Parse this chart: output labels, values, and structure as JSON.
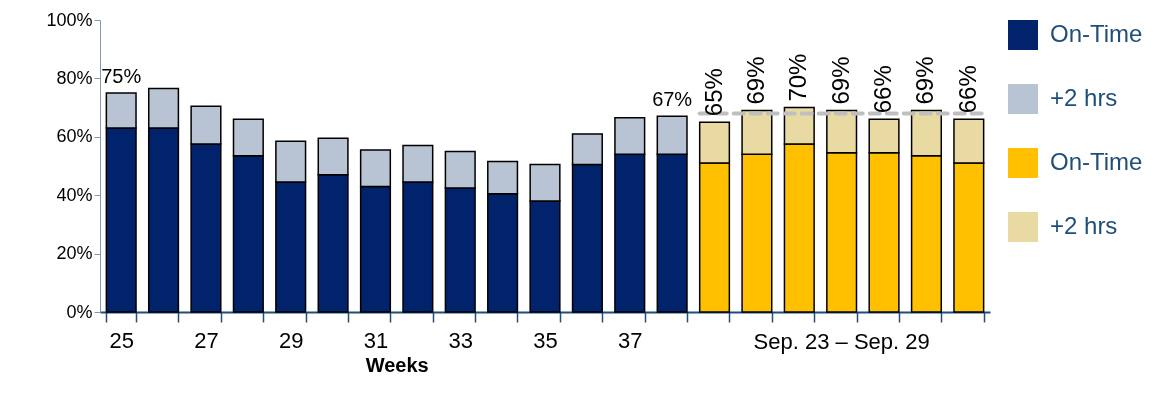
{
  "chart_data": {
    "type": "bar",
    "stacked": true,
    "categories": [
      "25",
      null,
      "27",
      null,
      "29",
      null,
      "31",
      null,
      "33",
      null,
      "35",
      null,
      "37",
      null,
      null,
      null,
      null,
      null,
      null,
      null,
      null
    ],
    "series": [
      {
        "name": "On-Time",
        "color": "#00236b",
        "values": [
          63,
          63,
          57.5,
          53.5,
          44.5,
          47,
          43,
          44.5,
          42.5,
          40.5,
          38,
          50.5,
          54,
          54,
          null,
          null,
          null,
          null,
          null,
          null,
          null
        ]
      },
      {
        "name": "+2 hrs",
        "color": "#b8c3d3",
        "values": [
          12,
          13.5,
          13,
          12.5,
          14,
          12.5,
          12.5,
          12.5,
          12.5,
          11,
          12.5,
          10.5,
          12.5,
          13,
          null,
          null,
          null,
          null,
          null,
          null,
          null
        ]
      },
      {
        "name": "On-Time",
        "color": "#ffc000",
        "values": [
          null,
          null,
          null,
          null,
          null,
          null,
          null,
          null,
          null,
          null,
          null,
          null,
          null,
          null,
          51,
          54,
          57.5,
          54.5,
          54.5,
          53.5,
          51
        ]
      },
      {
        "name": "+2 hrs",
        "color": "#e9d9a3",
        "values": [
          null,
          null,
          null,
          null,
          null,
          null,
          null,
          null,
          null,
          null,
          null,
          null,
          null,
          null,
          14,
          15,
          12.5,
          14.5,
          11.5,
          15.5,
          15
        ]
      }
    ],
    "totals": [
      "75%",
      null,
      null,
      null,
      null,
      null,
      null,
      null,
      null,
      null,
      null,
      null,
      null,
      "67%",
      "65%",
      "69%",
      "70%",
      "69%",
      "66%",
      "69%",
      "66%"
    ],
    "xlabel": "Weeks",
    "annotations": [
      "Sep. 23 – Sep. 29"
    ],
    "ylim": [
      0,
      100
    ],
    "yticks": [
      {
        "value": 0,
        "label": "0%"
      },
      {
        "value": 20,
        "label": "20%"
      },
      {
        "value": 40,
        "label": "40%"
      },
      {
        "value": 60,
        "label": "60%"
      },
      {
        "value": 80,
        "label": "80%"
      },
      {
        "value": 100,
        "label": "100%"
      }
    ],
    "ref_lines": [
      {
        "axis": "y",
        "value": 68,
        "color": "#bfbfbf",
        "line_style": "dashed"
      }
    ],
    "legend": "right"
  }
}
